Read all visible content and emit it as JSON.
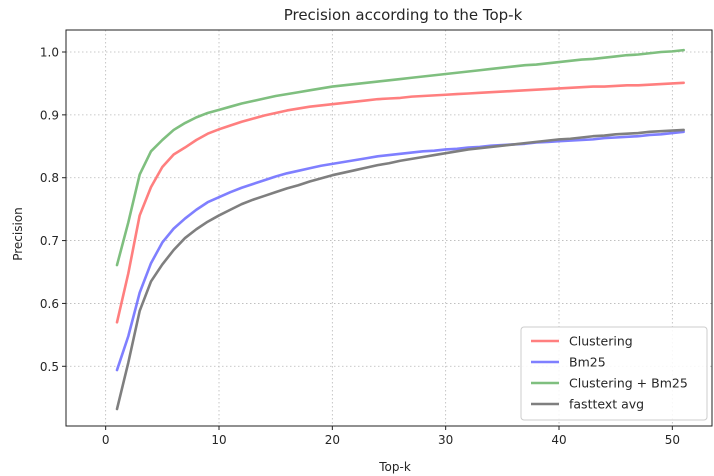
{
  "chart_data": {
    "type": "line",
    "title": "Precision according to the Top-k",
    "xlabel": "Top-k",
    "ylabel": "Precision",
    "xlim": [
      -3.5,
      53.5
    ],
    "ylim": [
      0.405,
      1.035
    ],
    "xticks": [
      0,
      10,
      20,
      30,
      40,
      50
    ],
    "xtick_labels": [
      "0",
      "10",
      "20",
      "30",
      "40",
      "50"
    ],
    "yticks": [
      0.5,
      0.6,
      0.7,
      0.8,
      0.9,
      1.0
    ],
    "ytick_labels": [
      "0.5",
      "0.6",
      "0.7",
      "0.8",
      "0.9",
      "1.0"
    ],
    "grid": true,
    "legend_position": "lower-right",
    "x": [
      1,
      2,
      3,
      4,
      5,
      6,
      7,
      8,
      9,
      10,
      11,
      12,
      13,
      14,
      15,
      16,
      17,
      18,
      19,
      20,
      21,
      22,
      23,
      24,
      25,
      26,
      27,
      28,
      29,
      30,
      31,
      32,
      33,
      34,
      35,
      36,
      37,
      38,
      39,
      40,
      41,
      42,
      43,
      44,
      45,
      46,
      47,
      48,
      49,
      50,
      51
    ],
    "series": [
      {
        "name": "Clustering",
        "color": "#ff7f7f",
        "values": [
          0.57,
          0.648,
          0.74,
          0.785,
          0.817,
          0.837,
          0.848,
          0.86,
          0.87,
          0.877,
          0.883,
          0.889,
          0.894,
          0.899,
          0.903,
          0.907,
          0.91,
          0.913,
          0.915,
          0.917,
          0.919,
          0.921,
          0.923,
          0.925,
          0.926,
          0.927,
          0.929,
          0.93,
          0.931,
          0.932,
          0.933,
          0.934,
          0.935,
          0.936,
          0.937,
          0.938,
          0.939,
          0.94,
          0.941,
          0.942,
          0.943,
          0.944,
          0.945,
          0.945,
          0.946,
          0.947,
          0.947,
          0.948,
          0.949,
          0.95,
          0.951
        ]
      },
      {
        "name": "Bm25",
        "color": "#7f7fff",
        "values": [
          0.494,
          0.548,
          0.617,
          0.664,
          0.697,
          0.719,
          0.735,
          0.749,
          0.761,
          0.769,
          0.777,
          0.784,
          0.79,
          0.796,
          0.802,
          0.807,
          0.811,
          0.815,
          0.819,
          0.822,
          0.825,
          0.828,
          0.831,
          0.834,
          0.836,
          0.838,
          0.84,
          0.842,
          0.843,
          0.845,
          0.846,
          0.848,
          0.849,
          0.851,
          0.852,
          0.853,
          0.854,
          0.856,
          0.857,
          0.858,
          0.859,
          0.86,
          0.861,
          0.863,
          0.864,
          0.865,
          0.866,
          0.868,
          0.869,
          0.871,
          0.873
        ]
      },
      {
        "name": "Clustering + Bm25",
        "color": "#7fbf7f",
        "values": [
          0.661,
          0.729,
          0.805,
          0.842,
          0.86,
          0.876,
          0.887,
          0.896,
          0.903,
          0.908,
          0.913,
          0.918,
          0.922,
          0.926,
          0.93,
          0.933,
          0.936,
          0.939,
          0.942,
          0.945,
          0.947,
          0.949,
          0.951,
          0.953,
          0.955,
          0.957,
          0.959,
          0.961,
          0.963,
          0.965,
          0.967,
          0.969,
          0.971,
          0.973,
          0.975,
          0.977,
          0.979,
          0.98,
          0.982,
          0.984,
          0.986,
          0.988,
          0.989,
          0.991,
          0.993,
          0.995,
          0.996,
          0.998,
          1.0,
          1.001,
          1.003
        ]
      },
      {
        "name": "fasttext avg",
        "color": "#7f7f7f",
        "values": [
          0.432,
          0.506,
          0.588,
          0.635,
          0.662,
          0.685,
          0.704,
          0.718,
          0.73,
          0.74,
          0.749,
          0.758,
          0.765,
          0.771,
          0.777,
          0.783,
          0.788,
          0.794,
          0.799,
          0.804,
          0.808,
          0.812,
          0.816,
          0.82,
          0.823,
          0.827,
          0.83,
          0.833,
          0.836,
          0.839,
          0.842,
          0.845,
          0.847,
          0.849,
          0.851,
          0.853,
          0.855,
          0.857,
          0.859,
          0.861,
          0.862,
          0.864,
          0.866,
          0.867,
          0.869,
          0.87,
          0.871,
          0.873,
          0.874,
          0.875,
          0.876
        ]
      }
    ]
  }
}
